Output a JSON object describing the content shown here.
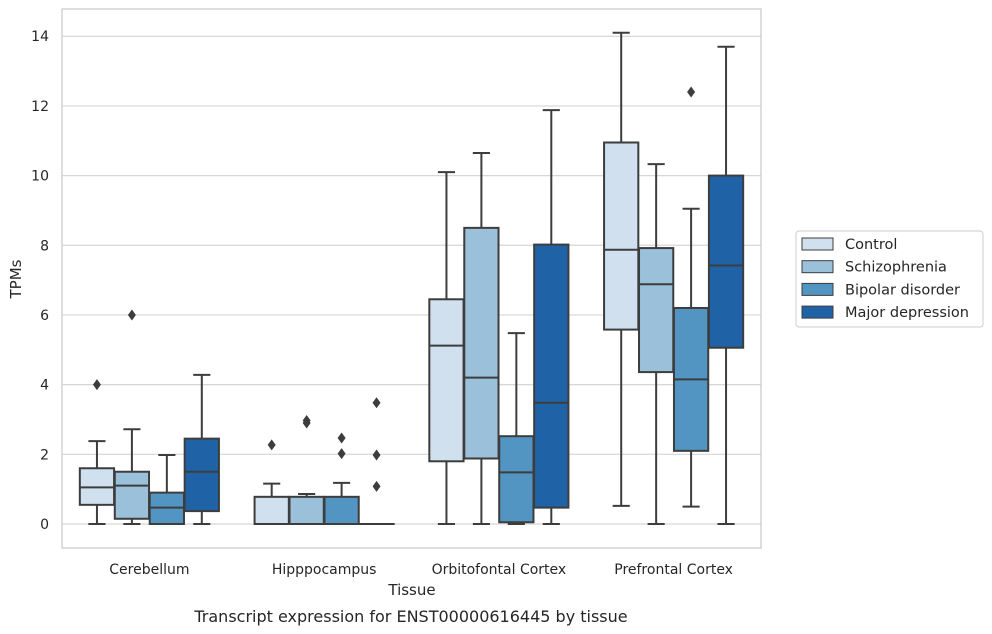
{
  "chart_data": {
    "type": "boxplot",
    "title": "",
    "caption": "Transcript expression for ENST00000616445 by tissue",
    "xlabel": "Tissue",
    "ylabel": "TPMs",
    "ylim": [
      -0.7,
      14.8
    ],
    "yticks": [
      0,
      2,
      4,
      6,
      8,
      10,
      12,
      14
    ],
    "grid": "horizontal",
    "legend_position": "right",
    "categories": [
      "Cerebellum",
      "Hipppocampus",
      "Orbitofontal Cortex",
      "Prefrontal Cortex"
    ],
    "series": [
      {
        "name": "Control",
        "color": "#d0e0ef",
        "boxes": [
          {
            "whislo": 0,
            "q1": 0.55,
            "med": 1.05,
            "q3": 1.6,
            "whishi": 2.38,
            "fliers": [
              4.0
            ]
          },
          {
            "whislo": 0,
            "q1": 0,
            "med": 0,
            "q3": 0.78,
            "whishi": 1.16,
            "fliers": [
              2.27
            ]
          },
          {
            "whislo": 0,
            "q1": 1.8,
            "med": 5.12,
            "q3": 6.45,
            "whishi": 10.1,
            "fliers": []
          },
          {
            "whislo": 0.52,
            "q1": 5.58,
            "med": 7.87,
            "q3": 10.95,
            "whishi": 14.1,
            "fliers": []
          }
        ]
      },
      {
        "name": "Schizophrenia",
        "color": "#9ac0da",
        "boxes": [
          {
            "whislo": 0,
            "q1": 0.15,
            "med": 1.1,
            "q3": 1.5,
            "whishi": 2.72,
            "fliers": [
              6.0
            ]
          },
          {
            "whislo": 0,
            "q1": 0,
            "med": 0,
            "q3": 0.78,
            "whishi": 0.86,
            "fliers": [
              2.9,
              2.97
            ]
          },
          {
            "whislo": 0,
            "q1": 1.88,
            "med": 4.2,
            "q3": 8.5,
            "whishi": 10.65,
            "fliers": []
          },
          {
            "whislo": 0,
            "q1": 4.36,
            "med": 6.88,
            "q3": 7.92,
            "whishi": 10.33,
            "fliers": []
          }
        ]
      },
      {
        "name": "Bipolar disorder",
        "color": "#5294c2",
        "boxes": [
          {
            "whislo": 0,
            "q1": 0,
            "med": 0.47,
            "q3": 0.9,
            "whishi": 1.98,
            "fliers": []
          },
          {
            "whislo": 0,
            "q1": 0,
            "med": 0,
            "q3": 0.78,
            "whishi": 1.18,
            "fliers": [
              2.02,
              2.47
            ]
          },
          {
            "whislo": 0,
            "q1": 0.05,
            "med": 1.48,
            "q3": 2.52,
            "whishi": 5.48,
            "fliers": []
          },
          {
            "whislo": 0.5,
            "q1": 2.1,
            "med": 4.15,
            "q3": 6.2,
            "whishi": 9.05,
            "fliers": [
              12.4
            ]
          }
        ]
      },
      {
        "name": "Major depression",
        "color": "#1f63a6",
        "boxes": [
          {
            "whislo": 0,
            "q1": 0.37,
            "med": 1.5,
            "q3": 2.45,
            "whishi": 4.28,
            "fliers": []
          },
          {
            "whislo": 0,
            "q1": 0,
            "med": 0,
            "q3": 0,
            "whishi": 0,
            "fliers": [
              1.08,
              1.98,
              3.48
            ]
          },
          {
            "whislo": 0,
            "q1": 0.47,
            "med": 3.48,
            "q3": 8.02,
            "whishi": 11.88,
            "fliers": []
          },
          {
            "whislo": 0,
            "q1": 5.06,
            "med": 7.42,
            "q3": 10.0,
            "whishi": 13.7,
            "fliers": []
          }
        ]
      }
    ]
  }
}
